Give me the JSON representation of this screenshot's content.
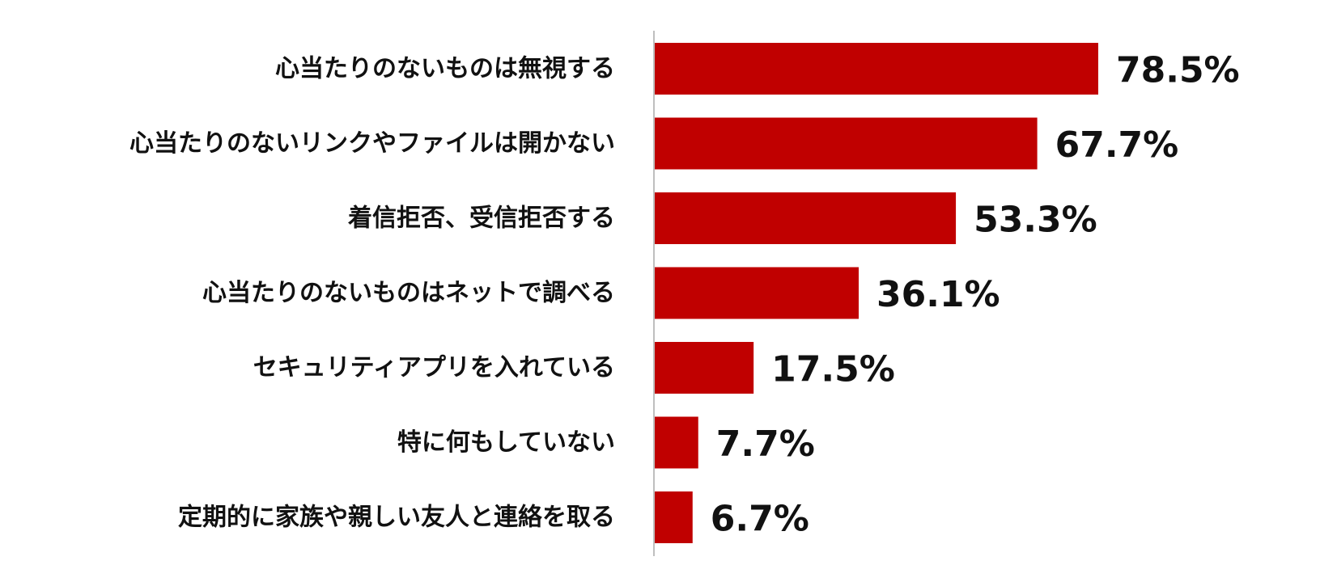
{
  "chart_data": {
    "type": "bar",
    "orientation": "horizontal",
    "title": "",
    "xlabel": "",
    "ylabel": "",
    "categories": [
      "心当たりのないものは無視する",
      "心当たりのないリンクやファイルは開かない",
      "着信拒否、受信拒否する",
      "心当たりのないものはネットで調べる",
      "セキュリティアプリを入れている",
      "特に何もしていない",
      "定期的に家族や親しい友人と連絡を取る"
    ],
    "values": [
      78.5,
      67.7,
      53.3,
      36.1,
      17.5,
      7.7,
      6.7
    ],
    "data_labels": [
      "78.5%",
      "67.7%",
      "53.3%",
      "36.1%",
      "17.5%",
      "7.7%",
      "6.7%"
    ],
    "unit": "%",
    "xlim": [
      0,
      100
    ],
    "grid": false,
    "legend": "none",
    "bar_color": "#c00000",
    "axis_color": "#bfbfbf"
  }
}
